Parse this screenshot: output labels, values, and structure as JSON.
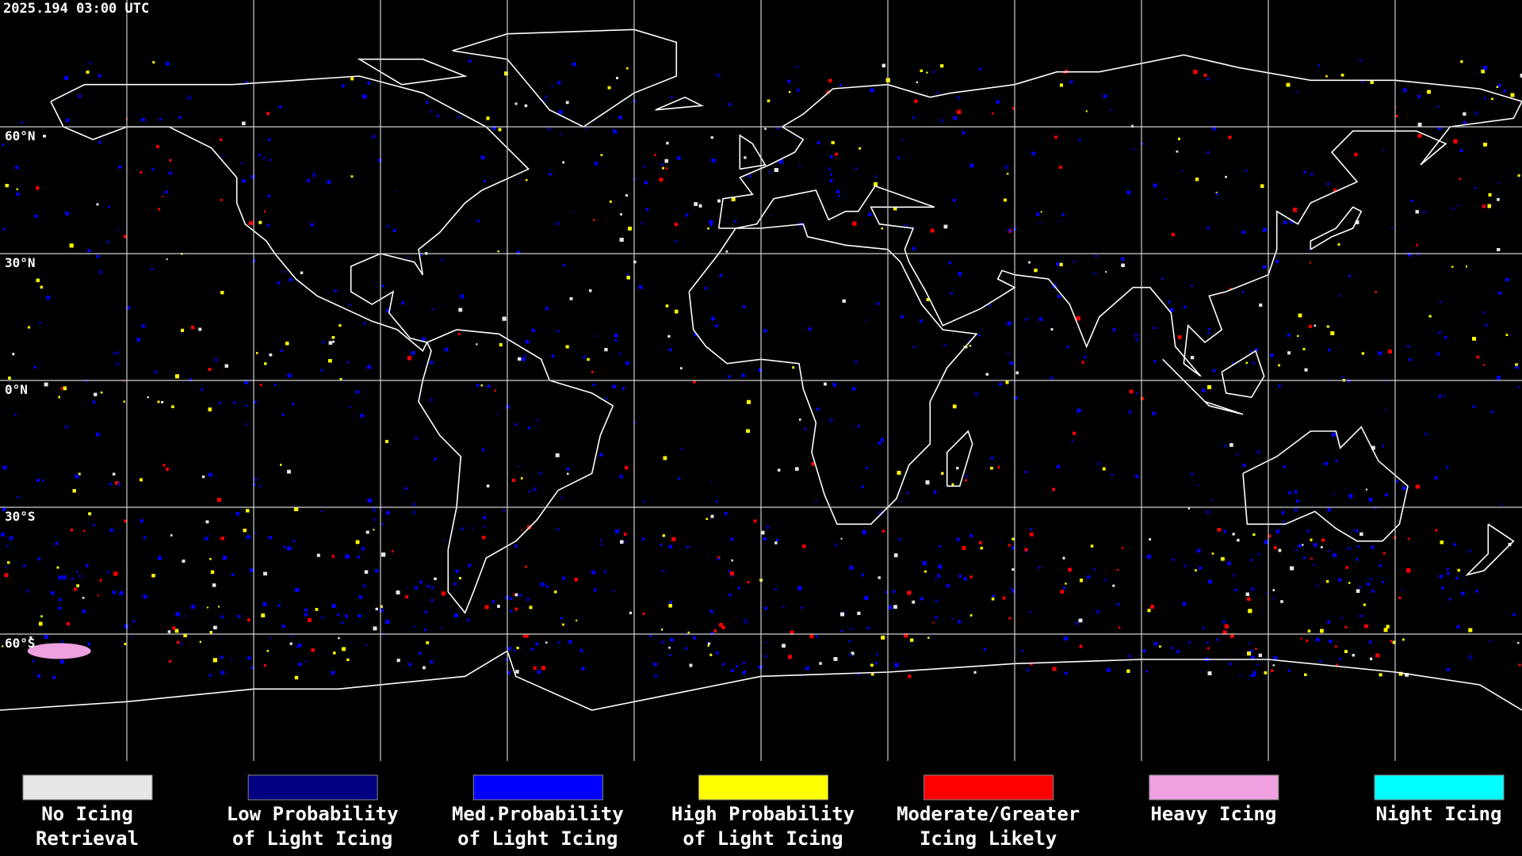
{
  "header": {
    "timestamp": "2025.194 03:00 UTC"
  },
  "latitude_labels": [
    "60°N",
    "30°N",
    "0°N",
    "30°S",
    "60°S"
  ],
  "legend": [
    {
      "lines": [
        "No Icing",
        "Retrieval"
      ],
      "color": "#e6e6e6"
    },
    {
      "lines": [
        "Low Probability",
        "of Light Icing"
      ],
      "color": "#000080"
    },
    {
      "lines": [
        "Med.Probability",
        "of Light Icing"
      ],
      "color": "#0000ff"
    },
    {
      "lines": [
        "High Probability",
        "of Light Icing"
      ],
      "color": "#ffff00"
    },
    {
      "lines": [
        "Moderate/Greater",
        "Icing Likely"
      ],
      "color": "#ff0000"
    },
    {
      "lines": [
        "Heavy Icing"
      ],
      "color": "#eea0e0"
    },
    {
      "lines": [
        "Night Icing"
      ],
      "color": "#00ffff"
    }
  ]
}
